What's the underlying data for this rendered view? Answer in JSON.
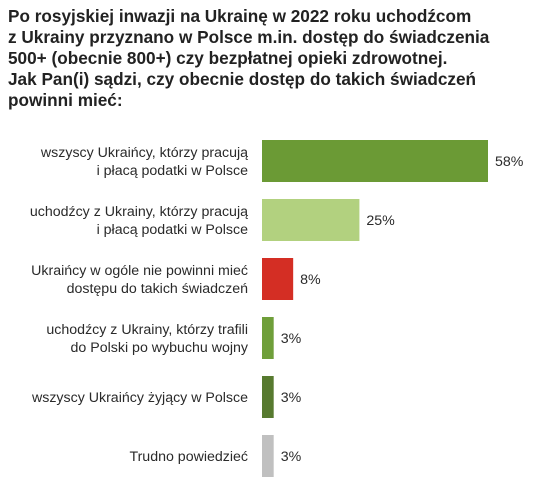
{
  "chart_data": {
    "type": "bar",
    "orientation": "horizontal",
    "title": "Po rosyjskiej inwazji na Ukrainę w 2022 roku uchodźcom\nz Ukrainy przyznano w Polsce m.in. dostęp do świadczenia\n500+ (obecnie 800+) czy bezpłatnej opieki zdrowotnej.\nJak Pan(i) sądzi, czy obecnie dostęp do takich świadczeń\npowinni mieć:",
    "categories": [
      [
        "wszyscy Ukraińcy, którzy pracują",
        "i płacą podatki w Polsce"
      ],
      [
        "uchodźcy z Ukrainy, którzy pracują",
        "i płacą podatki w Polsce"
      ],
      [
        "Ukraińcy w ogóle nie powinni mieć",
        "dostępu do takich świadczeń"
      ],
      [
        "uchodźcy z Ukrainy, którzy trafili",
        "do Polski po wybuchu wojny"
      ],
      [
        "wszyscy Ukraińcy żyjący w Polsce"
      ],
      [
        "Trudno powiedzieć"
      ]
    ],
    "values": [
      58,
      25,
      8,
      3,
      3,
      3
    ],
    "value_labels": [
      "58%",
      "25%",
      "8%",
      "3%",
      "3%",
      "3%"
    ],
    "bar_colors": [
      "#6b9a35",
      "#b2d17f",
      "#d42e24",
      "#6f9f3a",
      "#577a2f",
      "#c0c0c0"
    ],
    "xlim": [
      0,
      58
    ],
    "grid": false,
    "legend": "none"
  }
}
